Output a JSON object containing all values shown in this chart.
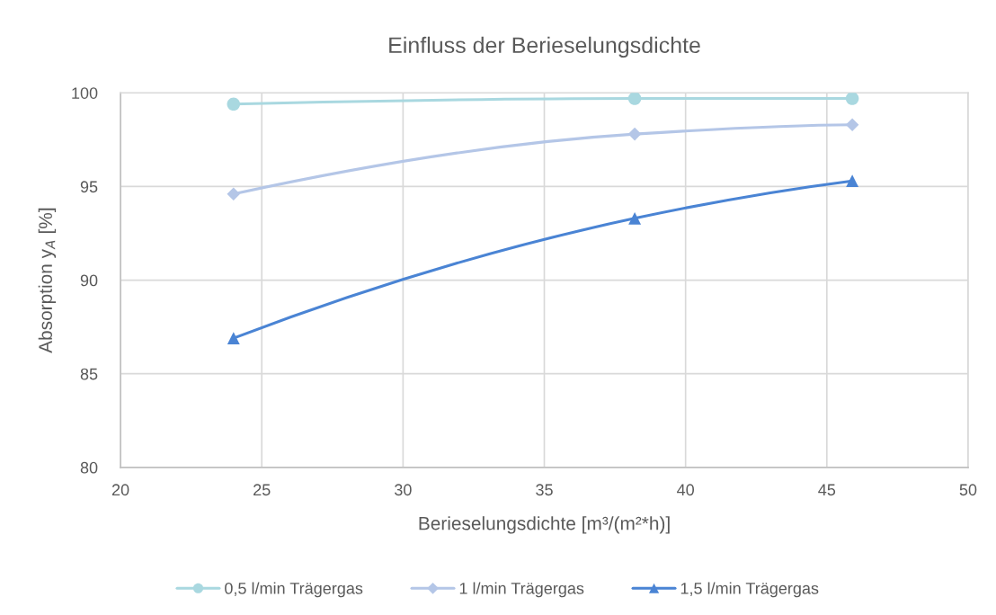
{
  "chart_data": {
    "type": "line",
    "title": "Einfluss der Berieselungsdichte",
    "xlabel": "Berieselungsdichte [m³/(m²*h)]",
    "ylabel": "Absorption y$_{A}$ [%]",
    "x": [
      24.0,
      38.2,
      45.9
    ],
    "xlim": [
      20,
      50
    ],
    "xticks": [
      20,
      25,
      30,
      35,
      40,
      45,
      50
    ],
    "ylim": [
      80,
      100
    ],
    "yticks": [
      80,
      85,
      90,
      95,
      100
    ],
    "grid": true,
    "legend": "bottom",
    "line_style": "solid",
    "series": [
      {
        "name": "0,5 l/min Trägergas",
        "color": "#a9d8e0",
        "marker": "circle",
        "values": [
          99.4,
          99.7,
          99.7
        ]
      },
      {
        "name": "1 l/min Trägergas",
        "color": "#b4c6e7",
        "marker": "diamond",
        "values": [
          94.6,
          97.8,
          98.3
        ]
      },
      {
        "name": "1,5 l/min Trägergas",
        "color": "#4a84d4",
        "marker": "triangle",
        "values": [
          86.9,
          93.3,
          95.3
        ]
      }
    ]
  }
}
